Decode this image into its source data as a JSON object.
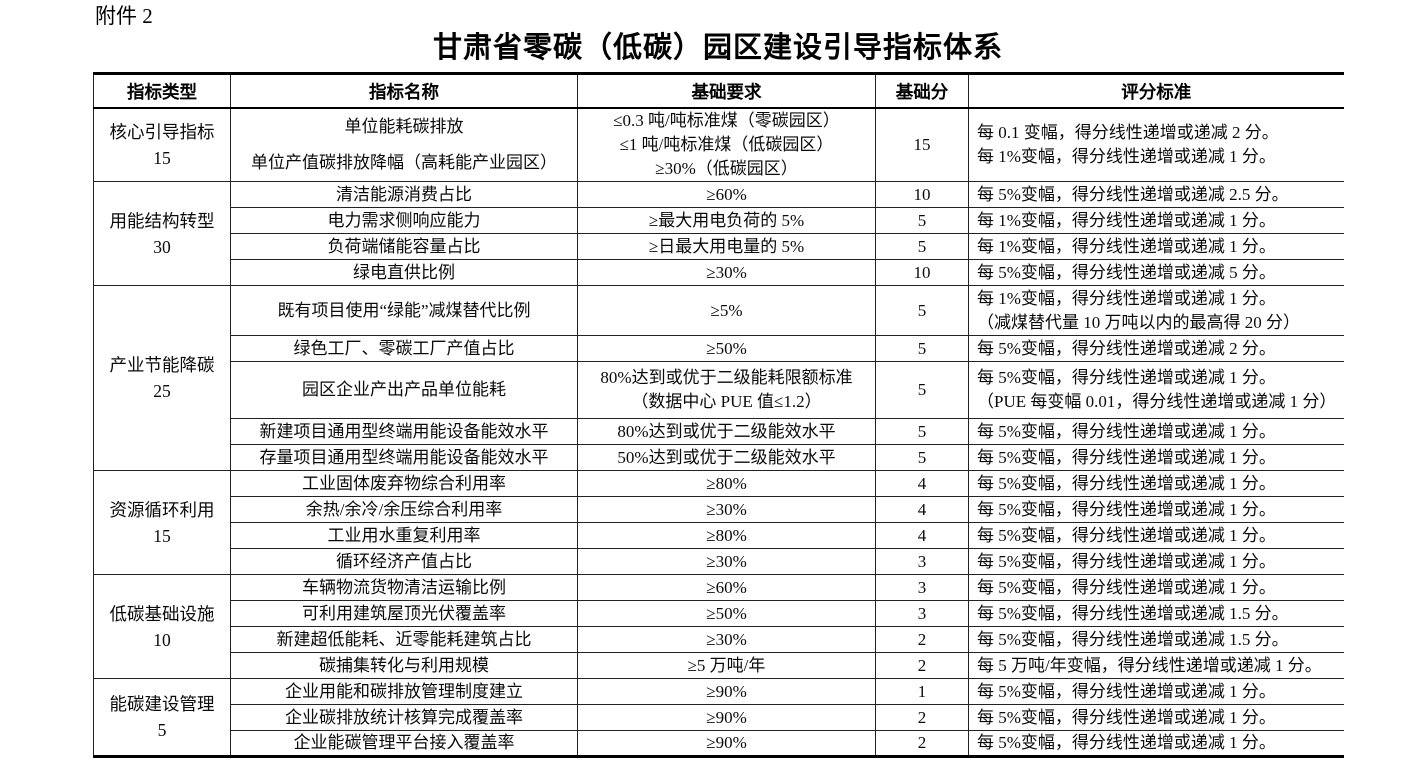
{
  "attachment_label": "附件 2",
  "title": "甘肃省零碳（低碳）园区建设引导指标体系",
  "table": {
    "headers": [
      "指标类型",
      "指标名称",
      "基础要求",
      "基础分",
      "评分标准"
    ],
    "sections": [
      {
        "category": "核心引导指标",
        "category_score": "15",
        "rows": [
          {
            "name": [
              "单位能耗碳排放",
              "单位产值碳排放降幅（高耗能产业园区）"
            ],
            "req": [
              "≤0.3 吨/吨标准煤（零碳园区）",
              "≤1 吨/吨标准煤（低碳园区）",
              "≥30%（低碳园区）"
            ],
            "score": "15",
            "scoring": [
              "每 0.1 变幅，得分线性递增或递减 2 分。",
              "每 1%变幅，得分线性递增或递减 1 分。"
            ]
          }
        ]
      },
      {
        "category": "用能结构转型",
        "category_score": "30",
        "rows": [
          {
            "name": "清洁能源消费占比",
            "req": "≥60%",
            "score": "10",
            "scoring": "每 5%变幅，得分线性递增或递减 2.5 分。"
          },
          {
            "name": "电力需求侧响应能力",
            "req": "≥最大用电负荷的 5%",
            "score": "5",
            "scoring": "每 1%变幅，得分线性递增或递减 1 分。"
          },
          {
            "name": "负荷端储能容量占比",
            "req": "≥日最大用电量的 5%",
            "score": "5",
            "scoring": "每 1%变幅，得分线性递增或递减 1 分。"
          },
          {
            "name": "绿电直供比例",
            "req": "≥30%",
            "score": "10",
            "scoring": "每 5%变幅，得分线性递增或递减 5 分。"
          }
        ]
      },
      {
        "category": "产业节能降碳",
        "category_score": "25",
        "rows": [
          {
            "name": "既有项目使用“绿能”减煤替代比例",
            "req": "≥5%",
            "score": "5",
            "scoring": [
              "每 1%变幅，得分线性递增或递减 1 分。",
              "（减煤替代量 10 万吨以内的最高得 20 分）"
            ]
          },
          {
            "name": "绿色工厂、零碳工厂产值占比",
            "req": "≥50%",
            "score": "5",
            "scoring": "每 5%变幅，得分线性递增或递减 2 分。"
          },
          {
            "name": "园区企业产出产品单位能耗",
            "req": [
              "80%达到或优于二级能耗限额标准",
              "（数据中心 PUE 值≤1.2）"
            ],
            "score": "5",
            "scoring": [
              "每 5%变幅，得分线性递增或递减 1 分。",
              "（PUE 每变幅 0.01，得分线性递增或递减 1 分）"
            ]
          },
          {
            "name": "新建项目通用型终端用能设备能效水平",
            "req": "80%达到或优于二级能效水平",
            "score": "5",
            "scoring": "每 5%变幅，得分线性递增或递减 1 分。"
          },
          {
            "name": "存量项目通用型终端用能设备能效水平",
            "req": "50%达到或优于二级能效水平",
            "score": "5",
            "scoring": "每 5%变幅，得分线性递增或递减 1 分。"
          }
        ]
      },
      {
        "category": "资源循环利用",
        "category_score": "15",
        "rows": [
          {
            "name": "工业固体废弃物综合利用率",
            "req": "≥80%",
            "score": "4",
            "scoring": "每 5%变幅，得分线性递增或递减 1 分。"
          },
          {
            "name": "余热/余冷/余压综合利用率",
            "req": "≥30%",
            "score": "4",
            "scoring": "每 5%变幅，得分线性递增或递减 1 分。"
          },
          {
            "name": "工业用水重复利用率",
            "req": "≥80%",
            "score": "4",
            "scoring": "每 5%变幅，得分线性递增或递减 1 分。"
          },
          {
            "name": "循环经济产值占比",
            "req": "≥30%",
            "score": "3",
            "scoring": "每 5%变幅，得分线性递增或递减 1 分。"
          }
        ]
      },
      {
        "category": "低碳基础设施",
        "category_score": "10",
        "rows": [
          {
            "name": "车辆物流货物清洁运输比例",
            "req": "≥60%",
            "score": "3",
            "scoring": "每 5%变幅，得分线性递增或递减 1 分。"
          },
          {
            "name": "可利用建筑屋顶光伏覆盖率",
            "req": "≥50%",
            "score": "3",
            "scoring": "每 5%变幅，得分线性递增或递减 1.5 分。"
          },
          {
            "name": "新建超低能耗、近零能耗建筑占比",
            "req": "≥30%",
            "score": "2",
            "scoring": "每 5%变幅，得分线性递增或递减 1.5 分。"
          },
          {
            "name": "碳捕集转化与利用规模",
            "req": "≥5 万吨/年",
            "score": "2",
            "scoring": "每 5 万吨/年变幅，得分线性递增或递减 1 分。"
          }
        ]
      },
      {
        "category": "能碳建设管理",
        "category_score": "5",
        "rows": [
          {
            "name": "企业用能和碳排放管理制度建立",
            "req": "≥90%",
            "score": "1",
            "scoring": "每 5%变幅，得分线性递增或递减 1 分。"
          },
          {
            "name": "企业碳排放统计核算完成覆盖率",
            "req": "≥90%",
            "score": "2",
            "scoring": "每 5%变幅，得分线性递增或递减 1 分。"
          },
          {
            "name": "企业能碳管理平台接入覆盖率",
            "req": "≥90%",
            "score": "2",
            "scoring": "每 5%变幅，得分线性递增或递减 1 分。"
          }
        ]
      }
    ]
  }
}
